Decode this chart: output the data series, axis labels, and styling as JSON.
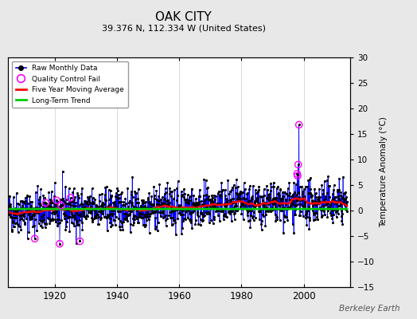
{
  "title": "OAK CITY",
  "subtitle": "39.376 N, 112.334 W (United States)",
  "ylabel": "Temperature Anomaly (°C)",
  "attribution": "Berkeley Earth",
  "year_start": 1905,
  "year_end": 2014,
  "ylim": [
    -15,
    30
  ],
  "yticks": [
    -15,
    -10,
    -5,
    0,
    5,
    10,
    15,
    20,
    25,
    30
  ],
  "xticks": [
    1920,
    1940,
    1960,
    1980,
    2000
  ],
  "bg_color": "#e8e8e8",
  "plot_bg_color": "#ffffff",
  "line_color": "#0000ff",
  "marker_color": "#000000",
  "qc_fail_color": "#ff00ff",
  "moving_avg_color": "#ff0000",
  "trend_color": "#00cc00",
  "seed": 42,
  "n_points": 1308,
  "spike_year": 1998.5,
  "spike_value": 16.8
}
